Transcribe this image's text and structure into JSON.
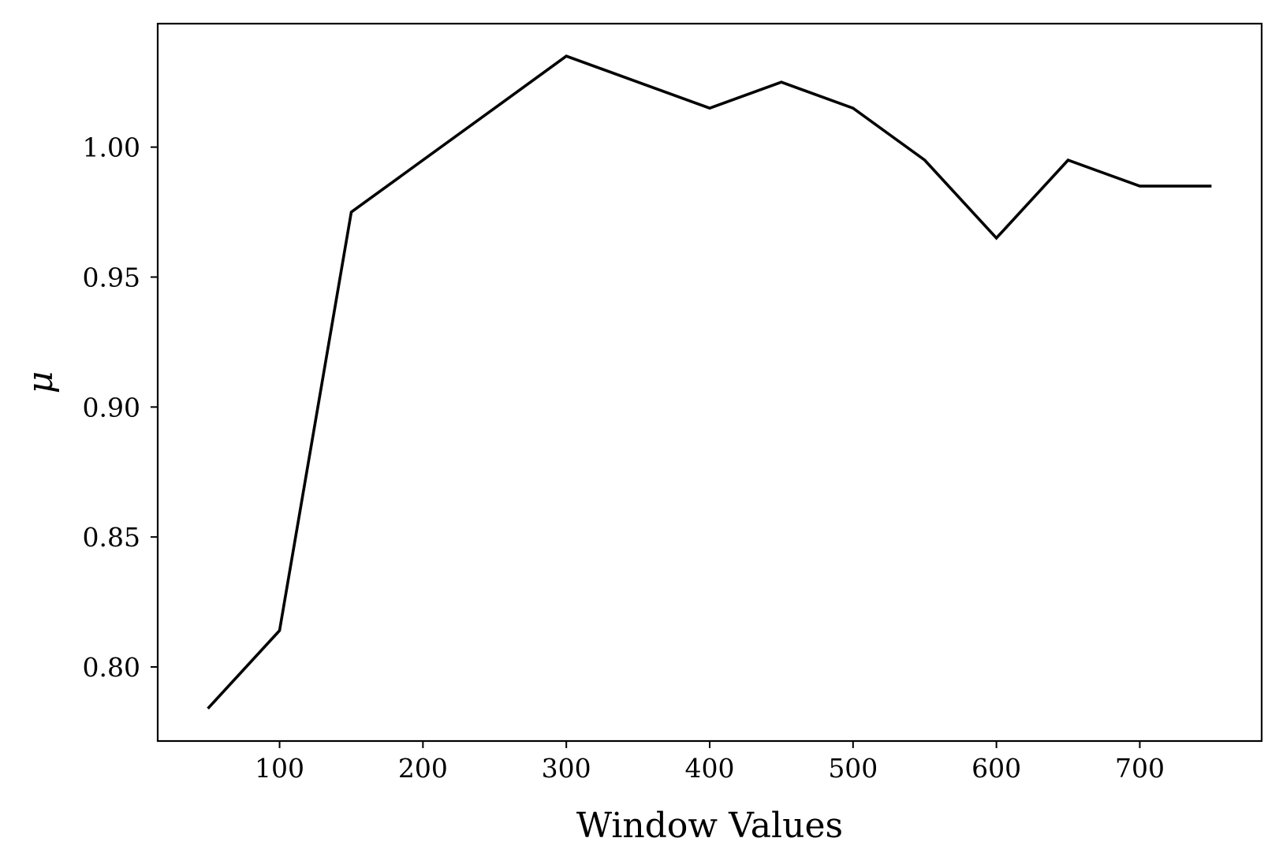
{
  "chart_data": {
    "type": "line",
    "title": "",
    "xlabel": "Window Values",
    "ylabel": "μ",
    "x": [
      50,
      100,
      150,
      200,
      250,
      300,
      350,
      400,
      450,
      500,
      550,
      600,
      650,
      700,
      750
    ],
    "series": [
      {
        "values": [
          0.784,
          0.814,
          0.975,
          0.995,
          1.015,
          1.035,
          1.025,
          1.015,
          1.025,
          1.015,
          0.995,
          0.965,
          0.995,
          0.985,
          0.985
        ],
        "color": "#000000"
      }
    ],
    "xticks": [
      100,
      200,
      300,
      400,
      500,
      600,
      700
    ],
    "xtick_labels": [
      "100",
      "200",
      "300",
      "400",
      "500",
      "600",
      "700"
    ],
    "yticks": [
      0.8,
      0.85,
      0.9,
      0.95,
      1.0
    ],
    "ytick_labels": [
      "0.80",
      "0.85",
      "0.90",
      "0.95",
      "1.00"
    ],
    "xlim": [
      15,
      785
    ],
    "ylim": [
      0.7715,
      1.0475
    ],
    "grid": false,
    "legend": "none"
  }
}
